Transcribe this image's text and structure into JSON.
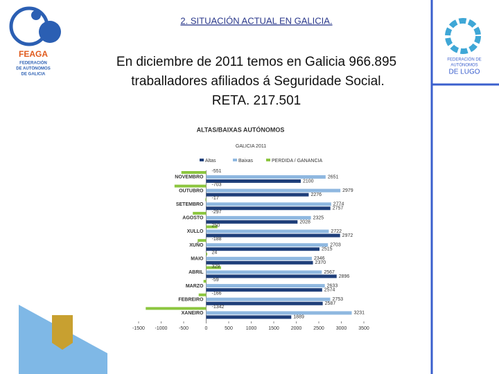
{
  "header": {
    "title": "2. SITUACIÓN ACTUAL EN GALICIA."
  },
  "body": {
    "lines": [
      "En diciembre  de 2011  temos en Galicia 966.895",
      "traballadores afiliados á Seguridade Social.",
      "RETA. 217.501"
    ]
  },
  "logos": {
    "left": {
      "name": "FEAGA",
      "lines": [
        "FEDERACIÓN",
        "DE AUTÓNOMOS",
        "DE GALICIA"
      ]
    },
    "right": {
      "lines": [
        "FEDERACIÓN DE",
        "AUTÓNOMOS",
        "DE LUGO"
      ]
    }
  },
  "chart_data": {
    "type": "hbar",
    "title": "ALTAS/BAIXAS AUTÓNOMOS",
    "subtitle": "GALICIA 2011",
    "categories": [
      "NOVEMBRO",
      "OUTUBRO",
      "SETEMBRO",
      "AGOSTO",
      "XULLO",
      "XUÑO",
      "MAIO",
      "ABRIL",
      "MARZO",
      "FEBREIRO",
      "XANEIRO"
    ],
    "series": [
      {
        "name": "Altas",
        "color": "#1f3f7a",
        "values": [
          2100,
          2276,
          2757,
          2028,
          2972,
          2515,
          2370,
          2896,
          2574,
          2587,
          1889
        ]
      },
      {
        "name": "Baixas",
        "color": "#8fb8e0",
        "values": [
          2651,
          2979,
          2774,
          2325,
          2722,
          2703,
          2346,
          2567,
          2633,
          2753,
          3231
        ]
      },
      {
        "name": "PERDIDA / GANANCIA",
        "color": "#8cc63f",
        "values": [
          -551,
          -703,
          -17,
          -297,
          250,
          -188,
          24,
          329,
          -59,
          -166,
          -1342
        ]
      }
    ],
    "xlim": [
      -1500,
      3500
    ],
    "xticks": [
      -1500,
      -1000,
      -500,
      0,
      500,
      1000,
      1500,
      2000,
      2500,
      3000,
      3500
    ]
  }
}
